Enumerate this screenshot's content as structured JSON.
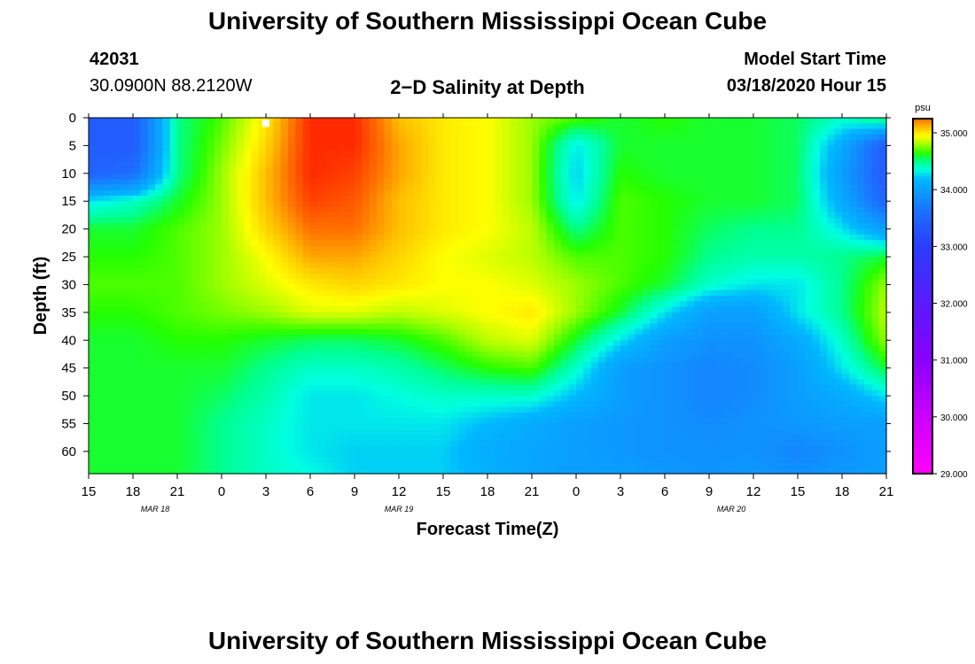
{
  "header": {
    "title": "University of Southern Mississippi Ocean Cube",
    "station_id": "42031",
    "location": "30.0900N 88.2120W",
    "subtitle": "2−D Salinity at Depth",
    "start_label": "Model Start Time",
    "start_value": "03/18/2020 Hour 15"
  },
  "footer": {
    "title": "University of Southern Mississippi Ocean Cube"
  },
  "colors": {
    "colormap": [
      "#ff00ff",
      "#cc00ff",
      "#8a00ff",
      "#5a1aff",
      "#2b3cff",
      "#1e6cff",
      "#00b8ff",
      "#00ffe0",
      "#00ff90",
      "#24ff00",
      "#9cff00",
      "#ffff00",
      "#ffc000",
      "#ff7000",
      "#ff2a00"
    ],
    "colormap_stops": [
      29.0,
      30.0,
      31.0,
      32.0,
      33.0,
      33.6,
      34.2,
      34.35,
      34.5,
      34.65,
      34.8,
      34.95,
      35.1,
      35.25,
      35.4
    ]
  },
  "chart_data": {
    "type": "heatmap",
    "title": "2−D Salinity at Depth",
    "xlabel": "Forecast Time(Z)",
    "ylabel": "Depth (ft)",
    "x_tick_labels": [
      "15",
      "18",
      "21",
      "0",
      "3",
      "6",
      "9",
      "12",
      "15",
      "18",
      "21",
      "0",
      "3",
      "6",
      "9",
      "12",
      "15",
      "18",
      "21"
    ],
    "x_hours": [
      0,
      3,
      6,
      9,
      12,
      15,
      18,
      21,
      24,
      27,
      30,
      33,
      36,
      39,
      42,
      45,
      48,
      51,
      54
    ],
    "date_labels": [
      {
        "text": "MAR  18",
        "hour": 4.5
      },
      {
        "text": "MAR  19",
        "hour": 21
      },
      {
        "text": "MAR  20",
        "hour": 43.5
      }
    ],
    "xlim_hours": [
      0,
      54
    ],
    "ylim": [
      0,
      64
    ],
    "y_inverted": true,
    "y_ticks": [
      0,
      5,
      10,
      15,
      20,
      25,
      30,
      35,
      40,
      45,
      50,
      55,
      60
    ],
    "colorbar": {
      "unit": "psu",
      "range": [
        29.0,
        35.25
      ],
      "tick_values": [
        29.0,
        30.0,
        31.0,
        32.0,
        33.0,
        34.0,
        35.0
      ],
      "tick_labels": [
        "29.000",
        "30.000",
        "31.000",
        "32.000",
        "33.000",
        "34.000",
        "35.000"
      ]
    },
    "marker": {
      "hour": 12,
      "depth": 1
    },
    "grid_hours": [
      0,
      3,
      6,
      9,
      12,
      15,
      18,
      21,
      24,
      27,
      30,
      33,
      36,
      39,
      42,
      45,
      48,
      51,
      54
    ],
    "grid_depths": [
      0,
      5,
      10,
      15,
      20,
      25,
      30,
      35,
      40,
      45,
      50,
      55,
      60,
      64
    ],
    "salinity_psu": [
      [
        33.4,
        33.4,
        34.5,
        34.7,
        35.0,
        35.4,
        35.4,
        35.1,
        35.0,
        34.95,
        34.8,
        34.7,
        34.6,
        34.65,
        34.6,
        34.6,
        34.55,
        34.4,
        34.6
      ],
      [
        33.4,
        33.4,
        34.5,
        34.75,
        35.05,
        35.4,
        35.4,
        35.15,
        35.0,
        34.95,
        34.8,
        34.3,
        34.6,
        34.6,
        34.6,
        34.6,
        34.55,
        34.1,
        33.4
      ],
      [
        33.5,
        33.6,
        34.5,
        34.8,
        35.1,
        35.4,
        35.35,
        35.15,
        35.0,
        34.95,
        34.8,
        34.25,
        34.65,
        34.6,
        34.6,
        34.6,
        34.55,
        34.0,
        33.4
      ],
      [
        34.3,
        34.4,
        34.6,
        34.8,
        35.1,
        35.35,
        35.3,
        35.1,
        35.0,
        34.95,
        34.8,
        34.3,
        34.7,
        34.65,
        34.6,
        34.6,
        34.55,
        34.1,
        33.5
      ],
      [
        34.6,
        34.6,
        34.7,
        34.8,
        35.05,
        35.25,
        35.25,
        35.1,
        35.0,
        34.95,
        34.85,
        34.5,
        34.7,
        34.65,
        34.55,
        34.5,
        34.5,
        34.3,
        34.0
      ],
      [
        34.65,
        34.65,
        34.7,
        34.8,
        34.95,
        35.15,
        35.15,
        35.05,
        34.95,
        34.9,
        34.85,
        34.7,
        34.7,
        34.65,
        34.5,
        34.45,
        34.45,
        34.5,
        34.6
      ],
      [
        34.7,
        34.7,
        34.7,
        34.8,
        34.9,
        35.0,
        35.05,
        35.0,
        34.95,
        34.95,
        34.9,
        34.8,
        34.7,
        34.6,
        34.4,
        34.3,
        34.3,
        34.5,
        34.8
      ],
      [
        34.65,
        34.65,
        34.7,
        34.75,
        34.8,
        34.9,
        34.9,
        34.85,
        34.9,
        34.95,
        35.0,
        34.8,
        34.6,
        34.3,
        34.0,
        34.0,
        34.3,
        34.5,
        34.85
      ],
      [
        34.6,
        34.6,
        34.65,
        34.65,
        34.6,
        34.55,
        34.55,
        34.6,
        34.7,
        34.85,
        34.9,
        34.6,
        34.3,
        34.0,
        33.9,
        33.9,
        34.1,
        34.4,
        34.8
      ],
      [
        34.6,
        34.6,
        34.6,
        34.6,
        34.5,
        34.4,
        34.4,
        34.45,
        34.55,
        34.65,
        34.7,
        34.4,
        34.0,
        33.9,
        33.8,
        33.85,
        34.0,
        34.3,
        34.6
      ],
      [
        34.6,
        34.6,
        34.6,
        34.55,
        34.45,
        34.3,
        34.3,
        34.35,
        34.4,
        34.4,
        34.4,
        34.2,
        34.0,
        33.9,
        33.8,
        33.85,
        34.0,
        34.1,
        34.3
      ],
      [
        34.6,
        34.6,
        34.6,
        34.5,
        34.4,
        34.3,
        34.3,
        34.3,
        34.3,
        34.2,
        34.1,
        34.0,
        33.95,
        33.9,
        33.85,
        33.9,
        33.95,
        34.0,
        34.0
      ],
      [
        34.6,
        34.6,
        34.6,
        34.5,
        34.4,
        34.3,
        34.25,
        34.25,
        34.25,
        34.1,
        34.05,
        34.0,
        33.95,
        33.9,
        33.9,
        33.9,
        33.8,
        33.9,
        34.0
      ],
      [
        34.6,
        34.6,
        34.6,
        34.5,
        34.4,
        34.35,
        34.25,
        34.25,
        34.25,
        34.15,
        34.05,
        34.0,
        34.0,
        33.95,
        33.9,
        33.95,
        33.9,
        33.95,
        34.0
      ]
    ]
  }
}
